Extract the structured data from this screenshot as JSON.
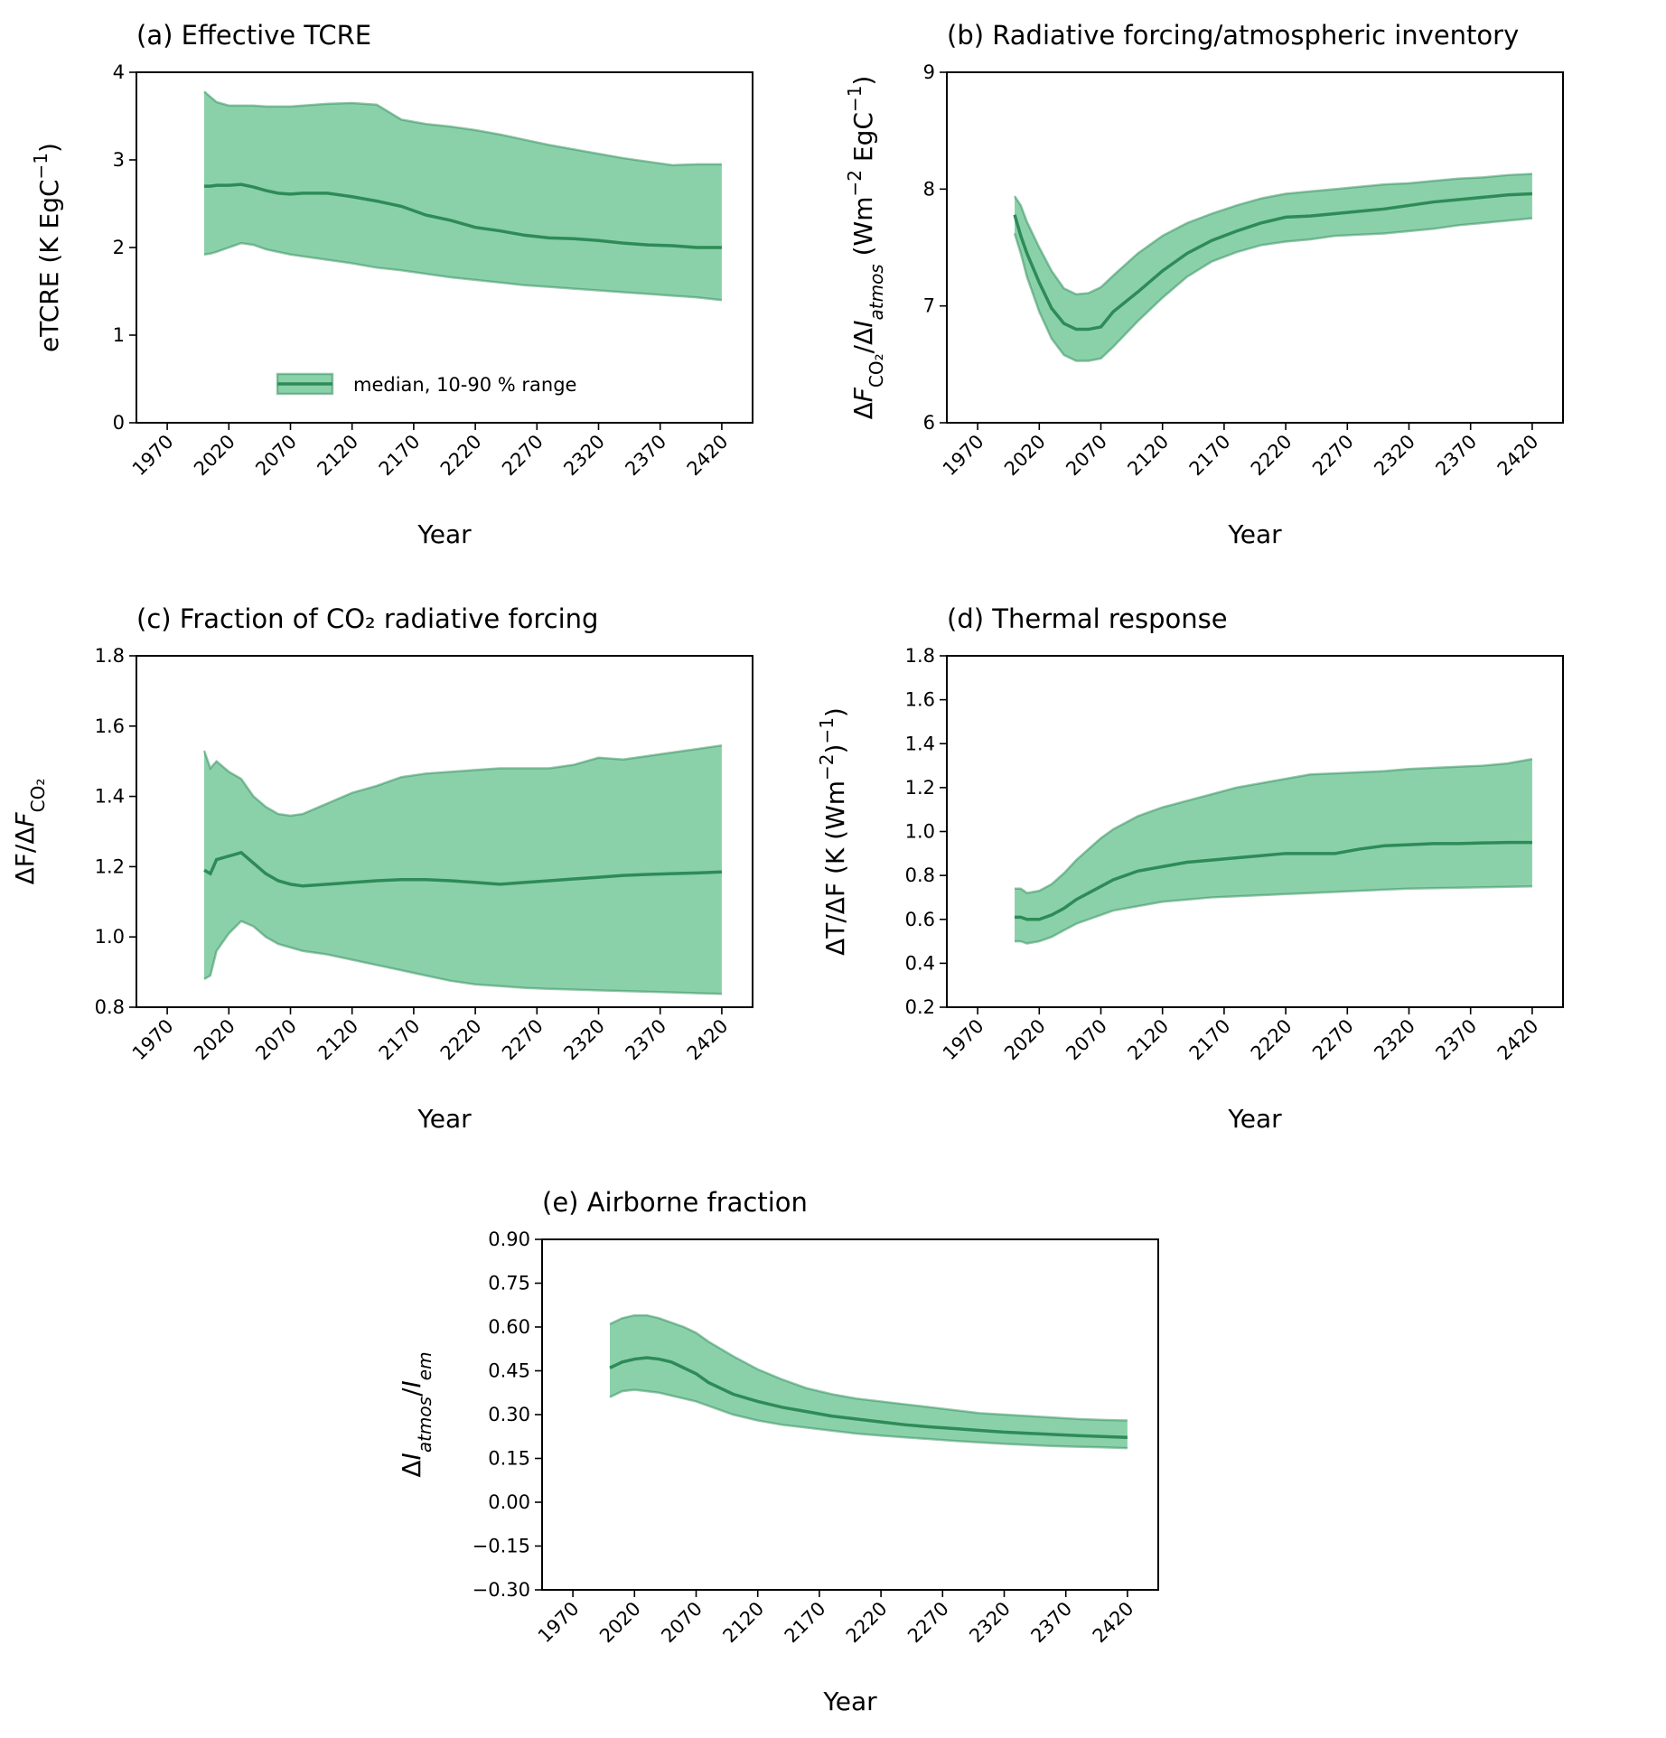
{
  "chart_data": [
    {
      "type": "line",
      "title": "(a) Effective TCRE",
      "xlabel": "Year",
      "ylabel": [
        {
          "text": "eTCRE (K EgC"
        },
        {
          "text": "−1",
          "sup": true
        },
        {
          "text": ")"
        }
      ],
      "x": [
        2000,
        2005,
        2010,
        2020,
        2030,
        2040,
        2050,
        2060,
        2070,
        2080,
        2100,
        2120,
        2140,
        2160,
        2180,
        2200,
        2220,
        2240,
        2260,
        2280,
        2300,
        2320,
        2340,
        2360,
        2380,
        2400,
        2420
      ],
      "median": [
        2.7,
        2.7,
        2.71,
        2.71,
        2.72,
        2.69,
        2.65,
        2.62,
        2.61,
        2.62,
        2.62,
        2.58,
        2.53,
        2.47,
        2.37,
        2.31,
        2.23,
        2.19,
        2.14,
        2.11,
        2.1,
        2.08,
        2.05,
        2.03,
        2.02,
        2.0,
        2.0
      ],
      "high": [
        3.78,
        3.72,
        3.66,
        3.62,
        3.62,
        3.62,
        3.61,
        3.61,
        3.61,
        3.62,
        3.64,
        3.65,
        3.63,
        3.46,
        3.41,
        3.38,
        3.34,
        3.29,
        3.23,
        3.17,
        3.12,
        3.07,
        3.02,
        2.98,
        2.94,
        2.95,
        2.95
      ],
      "low": [
        1.92,
        1.93,
        1.95,
        2.0,
        2.05,
        2.03,
        1.98,
        1.95,
        1.92,
        1.9,
        1.86,
        1.82,
        1.77,
        1.74,
        1.7,
        1.66,
        1.63,
        1.6,
        1.57,
        1.55,
        1.53,
        1.51,
        1.49,
        1.47,
        1.45,
        1.43,
        1.4
      ],
      "color": "#3cb371",
      "line_color": "#2e8b57",
      "xlim": [
        1945,
        2445
      ],
      "xticks": [
        1970,
        2020,
        2070,
        2120,
        2170,
        2220,
        2270,
        2320,
        2370,
        2420
      ],
      "ylim": [
        0,
        4
      ],
      "yticks": [
        0,
        1,
        2,
        3,
        4
      ],
      "legend": {
        "label": "median, 10-90 % range",
        "loc": "lower center"
      }
    },
    {
      "type": "line",
      "title": "(b) Radiative forcing/atmospheric inventory",
      "xlabel": "Year",
      "ylabel": [
        {
          "text": "Δ"
        },
        {
          "text": "F",
          "italic": true
        },
        {
          "text": "CO₂",
          "sub": true
        },
        {
          "text": "/Δ"
        },
        {
          "text": "I",
          "italic": true
        },
        {
          "text": "atmos",
          "sub": true,
          "italic": true
        },
        {
          "text": " (Wm"
        },
        {
          "text": "−2",
          "sup": true
        },
        {
          "text": " EgC"
        },
        {
          "text": "−1",
          "sup": true
        },
        {
          "text": ")"
        }
      ],
      "x": [
        2000,
        2005,
        2010,
        2020,
        2030,
        2040,
        2050,
        2060,
        2070,
        2080,
        2100,
        2120,
        2140,
        2160,
        2180,
        2200,
        2220,
        2240,
        2260,
        2280,
        2300,
        2320,
        2340,
        2360,
        2380,
        2400,
        2420
      ],
      "median": [
        7.78,
        7.6,
        7.45,
        7.2,
        6.98,
        6.85,
        6.8,
        6.8,
        6.82,
        6.95,
        7.12,
        7.3,
        7.45,
        7.56,
        7.64,
        7.71,
        7.76,
        7.77,
        7.79,
        7.81,
        7.83,
        7.86,
        7.89,
        7.91,
        7.93,
        7.95,
        7.96
      ],
      "high": [
        7.94,
        7.86,
        7.72,
        7.5,
        7.3,
        7.15,
        7.1,
        7.11,
        7.16,
        7.26,
        7.45,
        7.6,
        7.71,
        7.79,
        7.86,
        7.92,
        7.96,
        7.98,
        8.0,
        8.02,
        8.04,
        8.05,
        8.07,
        8.09,
        8.1,
        8.12,
        8.13
      ],
      "low": [
        7.62,
        7.45,
        7.25,
        6.95,
        6.72,
        6.58,
        6.53,
        6.53,
        6.55,
        6.65,
        6.87,
        7.07,
        7.25,
        7.38,
        7.46,
        7.52,
        7.55,
        7.57,
        7.6,
        7.61,
        7.62,
        7.64,
        7.66,
        7.69,
        7.71,
        7.73,
        7.75
      ],
      "color": "#3cb371",
      "line_color": "#2e8b57",
      "xlim": [
        1945,
        2445
      ],
      "xticks": [
        1970,
        2020,
        2070,
        2120,
        2170,
        2220,
        2270,
        2320,
        2370,
        2420
      ],
      "ylim": [
        6,
        9
      ],
      "yticks": [
        6,
        7,
        8,
        9
      ]
    },
    {
      "type": "line",
      "title": "(c) Fraction of CO₂ radiative forcing",
      "xlabel": "Year",
      "ylabel": [
        {
          "text": "ΔF/Δ"
        },
        {
          "text": "F",
          "italic": true
        },
        {
          "text": "CO₂",
          "sub": true
        }
      ],
      "x": [
        2000,
        2005,
        2010,
        2020,
        2030,
        2040,
        2050,
        2060,
        2070,
        2080,
        2100,
        2120,
        2140,
        2160,
        2180,
        2200,
        2220,
        2240,
        2260,
        2280,
        2300,
        2320,
        2340,
        2360,
        2380,
        2400,
        2420
      ],
      "median": [
        1.19,
        1.18,
        1.22,
        1.23,
        1.24,
        1.21,
        1.18,
        1.16,
        1.15,
        1.145,
        1.15,
        1.155,
        1.16,
        1.163,
        1.163,
        1.16,
        1.155,
        1.15,
        1.155,
        1.16,
        1.165,
        1.17,
        1.175,
        1.178,
        1.18,
        1.182,
        1.185
      ],
      "high": [
        1.53,
        1.48,
        1.5,
        1.47,
        1.45,
        1.4,
        1.37,
        1.35,
        1.345,
        1.35,
        1.38,
        1.41,
        1.43,
        1.455,
        1.465,
        1.47,
        1.475,
        1.48,
        1.48,
        1.48,
        1.49,
        1.51,
        1.505,
        1.515,
        1.525,
        1.535,
        1.545
      ],
      "low": [
        0.88,
        0.89,
        0.96,
        1.01,
        1.045,
        1.03,
        1.0,
        0.98,
        0.97,
        0.96,
        0.95,
        0.935,
        0.92,
        0.905,
        0.89,
        0.875,
        0.865,
        0.86,
        0.855,
        0.852,
        0.85,
        0.848,
        0.846,
        0.844,
        0.842,
        0.84,
        0.838
      ],
      "color": "#3cb371",
      "line_color": "#2e8b57",
      "xlim": [
        1945,
        2445
      ],
      "xticks": [
        1970,
        2020,
        2070,
        2120,
        2170,
        2220,
        2270,
        2320,
        2370,
        2420
      ],
      "ylim": [
        0.8,
        1.8
      ],
      "yticks": [
        0.8,
        {
          "value": 1,
          "label": "1.0"
        },
        1.2,
        1.4,
        1.6,
        1.8
      ]
    },
    {
      "type": "line",
      "title": "(d) Thermal response",
      "xlabel": "Year",
      "ylabel": [
        {
          "text": "ΔT/ΔF (K (Wm"
        },
        {
          "text": "−2",
          "sup": true
        },
        {
          "text": ")"
        },
        {
          "text": "−1",
          "sup": true
        },
        {
          "text": ")"
        }
      ],
      "x": [
        2000,
        2005,
        2010,
        2020,
        2030,
        2040,
        2050,
        2060,
        2070,
        2080,
        2100,
        2120,
        2140,
        2160,
        2180,
        2200,
        2220,
        2240,
        2260,
        2280,
        2300,
        2320,
        2340,
        2360,
        2380,
        2400,
        2420
      ],
      "median": [
        0.61,
        0.61,
        0.6,
        0.6,
        0.62,
        0.65,
        0.69,
        0.72,
        0.75,
        0.78,
        0.82,
        0.84,
        0.86,
        0.87,
        0.88,
        0.89,
        0.9,
        0.9,
        0.9,
        0.92,
        0.935,
        0.94,
        0.945,
        0.945,
        0.948,
        0.95,
        0.95
      ],
      "high": [
        0.74,
        0.74,
        0.72,
        0.73,
        0.76,
        0.81,
        0.87,
        0.92,
        0.97,
        1.01,
        1.07,
        1.11,
        1.14,
        1.17,
        1.2,
        1.22,
        1.24,
        1.26,
        1.265,
        1.27,
        1.275,
        1.285,
        1.29,
        1.295,
        1.3,
        1.31,
        1.33
      ],
      "low": [
        0.5,
        0.5,
        0.49,
        0.5,
        0.52,
        0.55,
        0.58,
        0.6,
        0.62,
        0.64,
        0.66,
        0.68,
        0.69,
        0.7,
        0.705,
        0.71,
        0.715,
        0.72,
        0.725,
        0.73,
        0.735,
        0.74,
        0.742,
        0.744,
        0.746,
        0.748,
        0.75
      ],
      "color": "#3cb371",
      "line_color": "#2e8b57",
      "xlim": [
        1945,
        2445
      ],
      "xticks": [
        1970,
        2020,
        2070,
        2120,
        2170,
        2220,
        2270,
        2320,
        2370,
        2420
      ],
      "ylim": [
        0.2,
        1.8
      ],
      "yticks": [
        0.2,
        0.4,
        0.6,
        0.8,
        {
          "value": 1,
          "label": "1.0"
        },
        1.2,
        1.4,
        1.6,
        1.8
      ]
    },
    {
      "type": "line",
      "title": "(e) Airborne fraction",
      "xlabel": "Year",
      "ylabel": [
        {
          "text": "Δ"
        },
        {
          "text": "I",
          "italic": true
        },
        {
          "text": "atmos",
          "sub": true,
          "italic": true
        },
        {
          "text": "/"
        },
        {
          "text": "I",
          "italic": true
        },
        {
          "text": "em",
          "sub": true,
          "italic": true
        }
      ],
      "x": [
        2000,
        2005,
        2010,
        2020,
        2030,
        2040,
        2050,
        2060,
        2070,
        2080,
        2100,
        2120,
        2140,
        2160,
        2180,
        2200,
        2220,
        2240,
        2260,
        2280,
        2300,
        2320,
        2340,
        2360,
        2380,
        2400,
        2420
      ],
      "median": [
        0.46,
        0.47,
        0.48,
        0.49,
        0.495,
        0.49,
        0.48,
        0.46,
        0.44,
        0.41,
        0.37,
        0.345,
        0.325,
        0.31,
        0.295,
        0.285,
        0.275,
        0.265,
        0.258,
        0.252,
        0.246,
        0.24,
        0.236,
        0.232,
        0.228,
        0.225,
        0.222
      ],
      "high": [
        0.61,
        0.62,
        0.63,
        0.64,
        0.64,
        0.63,
        0.615,
        0.6,
        0.58,
        0.55,
        0.5,
        0.455,
        0.42,
        0.39,
        0.37,
        0.355,
        0.345,
        0.335,
        0.325,
        0.315,
        0.305,
        0.3,
        0.295,
        0.29,
        0.285,
        0.282,
        0.28
      ],
      "low": [
        0.36,
        0.37,
        0.38,
        0.385,
        0.38,
        0.375,
        0.365,
        0.355,
        0.345,
        0.33,
        0.3,
        0.28,
        0.265,
        0.255,
        0.245,
        0.235,
        0.228,
        0.222,
        0.216,
        0.21,
        0.205,
        0.2,
        0.196,
        0.192,
        0.19,
        0.188,
        0.185
      ],
      "color": "#3cb371",
      "line_color": "#2e8b57",
      "xlim": [
        1945,
        2445
      ],
      "xticks": [
        1970,
        2020,
        2070,
        2120,
        2170,
        2220,
        2270,
        2320,
        2370,
        2420
      ],
      "ylim": [
        -0.3,
        0.9
      ],
      "yticks": [
        {
          "value": -0.3,
          "label": "−0.30"
        },
        {
          "value": -0.15,
          "label": "−0.15"
        },
        {
          "value": 0,
          "label": "0.00"
        },
        0.15,
        {
          "value": 0.3,
          "label": "0.30"
        },
        0.45,
        {
          "value": 0.6,
          "label": "0.60"
        },
        0.75,
        {
          "value": 0.9,
          "label": "0.90"
        }
      ]
    }
  ]
}
